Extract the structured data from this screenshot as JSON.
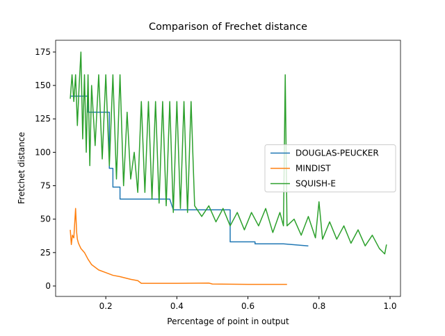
{
  "chart_data": {
    "type": "line",
    "title": "Comparison of Frechet distance",
    "x_label": "Percentage of point in output",
    "y_label": "Fretchet distance",
    "xlim": [
      0.0588,
      1.0294
    ],
    "ylim": [
      -7.8,
      183.8
    ],
    "xticks": [
      0.2,
      0.4,
      0.6,
      0.8,
      {
        "value": 1,
        "label": "1.0"
      }
    ],
    "yticks": [
      0,
      25,
      50,
      75,
      100,
      125,
      150,
      175
    ],
    "legend": "center right",
    "series": [
      {
        "name": "DOUGLAS-PEUCKER",
        "color": "#1f77b4",
        "x": [
          0.1,
          0.15,
          0.15,
          0.21,
          0.21,
          0.22,
          0.22,
          0.24,
          0.24,
          0.38,
          0.39,
          0.55,
          0.55,
          0.62,
          0.62,
          0.7,
          0.77
        ],
        "values": [
          142,
          142,
          130,
          130,
          88,
          88,
          74,
          74,
          65,
          65,
          57,
          57,
          33,
          33,
          31.5,
          31.5,
          30
        ]
      },
      {
        "name": "MINDIST",
        "color": "#ff7f0e",
        "x": [
          0.1,
          0.103,
          0.106,
          0.11,
          0.115,
          0.118,
          0.12,
          0.123,
          0.13,
          0.14,
          0.15,
          0.16,
          0.18,
          0.2,
          0.22,
          0.24,
          0.27,
          0.29,
          0.3,
          0.4,
          0.49,
          0.5,
          0.6,
          0.71
        ],
        "values": [
          42,
          31,
          38,
          36,
          58,
          40,
          35,
          32,
          28,
          25,
          20,
          16,
          12,
          10,
          8,
          7,
          5,
          4,
          2,
          2,
          2.2,
          1.5,
          1.2,
          1.2
        ]
      },
      {
        "name": "SQUISH-E",
        "color": "#2ca02c",
        "x": [
          0.1,
          0.105,
          0.11,
          0.115,
          0.12,
          0.125,
          0.13,
          0.135,
          0.14,
          0.145,
          0.15,
          0.155,
          0.16,
          0.17,
          0.18,
          0.19,
          0.2,
          0.21,
          0.22,
          0.23,
          0.24,
          0.25,
          0.26,
          0.27,
          0.28,
          0.29,
          0.3,
          0.31,
          0.32,
          0.33,
          0.34,
          0.35,
          0.36,
          0.37,
          0.38,
          0.39,
          0.4,
          0.41,
          0.42,
          0.43,
          0.44,
          0.45,
          0.47,
          0.49,
          0.51,
          0.53,
          0.55,
          0.57,
          0.59,
          0.61,
          0.63,
          0.65,
          0.67,
          0.69,
          0.7,
          0.705,
          0.71,
          0.73,
          0.75,
          0.77,
          0.79,
          0.8,
          0.81,
          0.83,
          0.85,
          0.87,
          0.89,
          0.91,
          0.93,
          0.95,
          0.97,
          0.985,
          0.99
        ],
        "values": [
          140,
          158,
          138,
          158,
          120,
          150,
          175,
          110,
          158,
          100,
          158,
          90,
          150,
          105,
          158,
          95,
          158,
          90,
          158,
          80,
          158,
          75,
          130,
          80,
          100,
          70,
          138,
          70,
          138,
          65,
          138,
          62,
          138,
          60,
          138,
          55,
          138,
          58,
          138,
          55,
          138,
          60,
          52,
          60,
          48,
          58,
          45,
          55,
          42,
          55,
          45,
          58,
          40,
          55,
          45,
          158,
          45,
          50,
          38,
          52,
          36,
          63,
          35,
          48,
          35,
          45,
          32,
          42,
          30,
          38,
          28,
          24,
          31
        ]
      }
    ]
  }
}
